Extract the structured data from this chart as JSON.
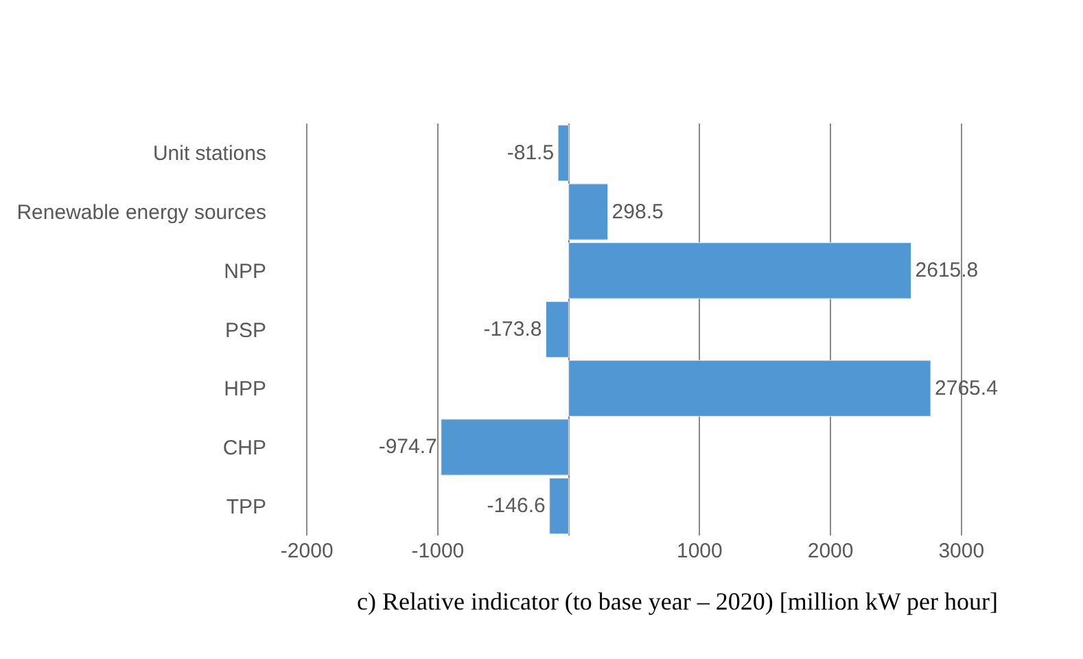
{
  "chart_data": {
    "type": "bar",
    "orientation": "horizontal",
    "categories": [
      "Unit stations",
      "Renewable energy sources",
      "NPP",
      "PSP",
      "HPP",
      "CHP",
      "TPP"
    ],
    "values": [
      -81.5,
      298.5,
      2615.8,
      -173.8,
      2765.4,
      -974.7,
      -146.6
    ],
    "color": "#5197d3",
    "xlim": [
      -2000,
      3000
    ],
    "xticks": [
      -2000,
      -1000,
      {
        "value": 0,
        "label": null
      },
      1000,
      2000,
      3000
    ],
    "grid": "x",
    "data_labels": true,
    "annotations": [
      "c) Relative indicator (to base year – 2020) [million kW per hour]"
    ]
  }
}
